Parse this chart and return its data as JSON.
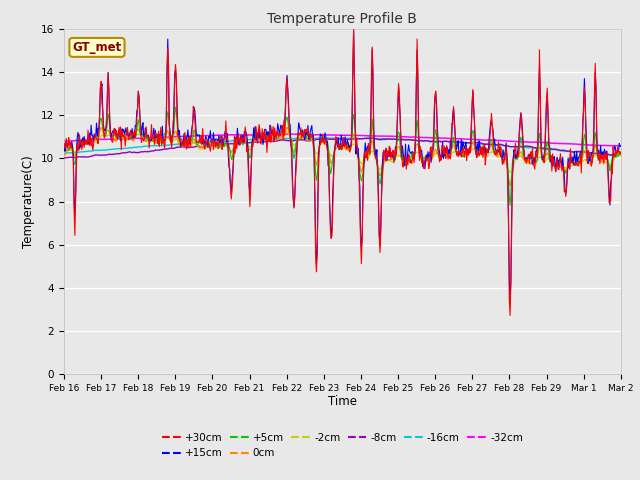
{
  "title": "Temperature Profile B",
  "xlabel": "Time",
  "ylabel": "Temperature(C)",
  "annotation_text": "GT_met",
  "ylim": [
    0,
    16
  ],
  "yticks": [
    0,
    2,
    4,
    6,
    8,
    10,
    12,
    14,
    16
  ],
  "xtick_labels": [
    "Feb 16",
    "Feb 17",
    "Feb 18",
    "Feb 19",
    "Feb 20",
    "Feb 21",
    "Feb 22",
    "Feb 23",
    "Feb 24",
    "Feb 25",
    "Feb 26",
    "Feb 27",
    "Feb 28",
    "Feb 29",
    "Mar 1",
    "Mar 2"
  ],
  "n_days": 15,
  "n_pts": 720,
  "colors": {
    "+30cm": "#FF0000",
    "+15cm": "#0000FF",
    "+5cm": "#00CC00",
    "0cm": "#FF8800",
    "-2cm": "#CCCC00",
    "-8cm": "#9900BB",
    "-16cm": "#00CCCC",
    "-32cm": "#FF00FF"
  },
  "bg_color": "#E8E8E8",
  "grid_color": "#FFFFFF",
  "annotation_fg": "#880000",
  "annotation_bg": "#FFFFCC",
  "annotation_border": "#BB8800",
  "legend_ncol_row1": 6,
  "legend_ncol_row2": 2
}
